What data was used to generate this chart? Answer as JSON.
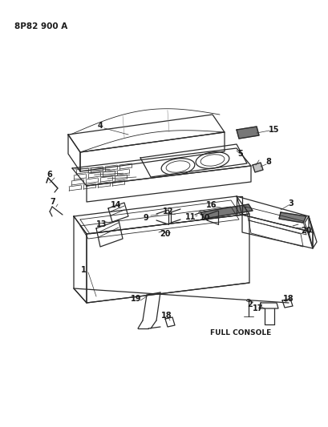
{
  "title": "8P82 900 A",
  "subtitle": "FULL CONSOLE",
  "bg_color": "#ffffff",
  "line_color": "#2a2a2a",
  "text_color": "#1a1a1a",
  "title_fontsize": 7.5,
  "label_fontsize": 7,
  "figsize": [
    4.09,
    5.33
  ],
  "dpi": 100
}
